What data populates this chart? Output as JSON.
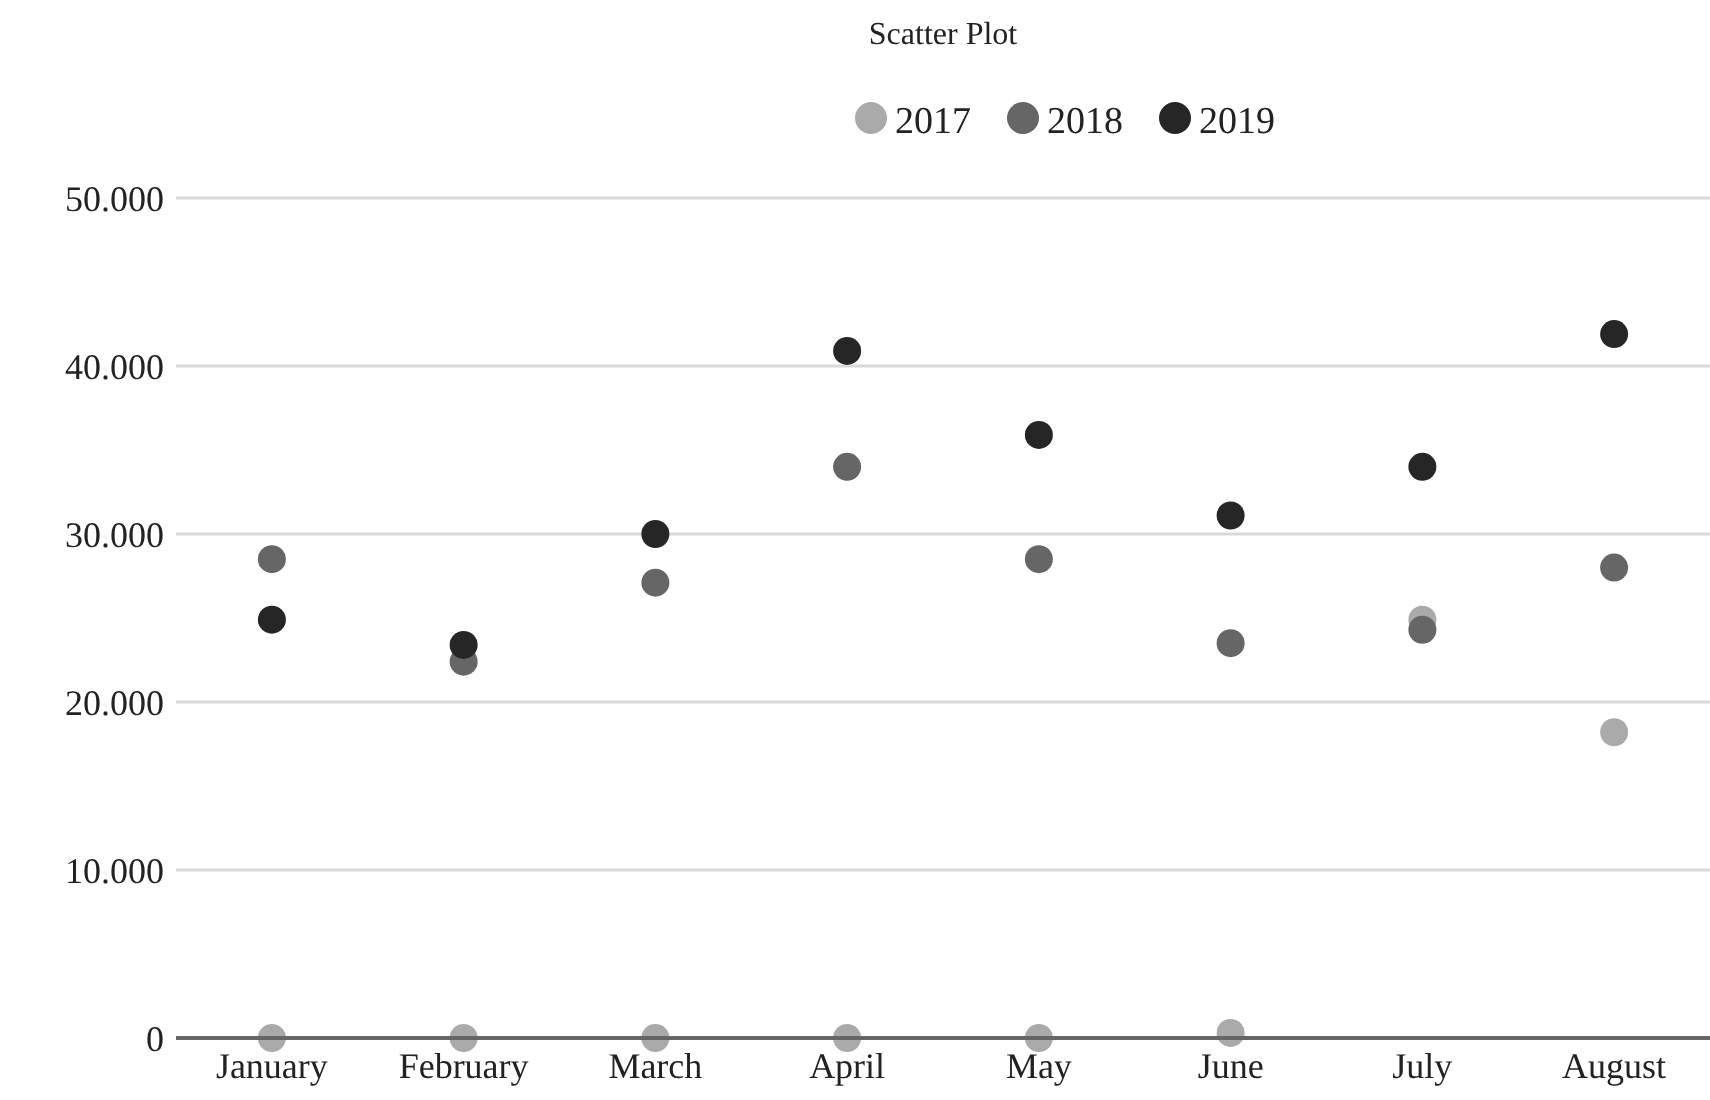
{
  "chart_data": {
    "type": "scatter",
    "title": "Scatter Plot",
    "categories": [
      "January",
      "February",
      "March",
      "April",
      "May",
      "June",
      "July",
      "August"
    ],
    "series": [
      {
        "name": "2017",
        "color": "#aaaaaa",
        "values": [
          0,
          0,
          0,
          0,
          0,
          300,
          24900,
          18200
        ]
      },
      {
        "name": "2018",
        "color": "#666666",
        "values": [
          28500,
          22400,
          27100,
          34000,
          28500,
          23500,
          24300,
          28000
        ]
      },
      {
        "name": "2019",
        "color": "#262626",
        "values": [
          24900,
          23400,
          30000,
          40900,
          35900,
          31100,
          34000,
          41900
        ]
      }
    ],
    "ylim": [
      0,
      50000
    ],
    "yticks": [
      {
        "value": 0,
        "label": "0"
      },
      {
        "value": 10000,
        "label": "10.000"
      },
      {
        "value": 20000,
        "label": "20.000"
      },
      {
        "value": 30000,
        "label": "30.000"
      },
      {
        "value": 40000,
        "label": "40.000"
      },
      {
        "value": 50000,
        "label": "50.000"
      }
    ],
    "grid": "y",
    "legend": "top",
    "marker": "circle"
  }
}
